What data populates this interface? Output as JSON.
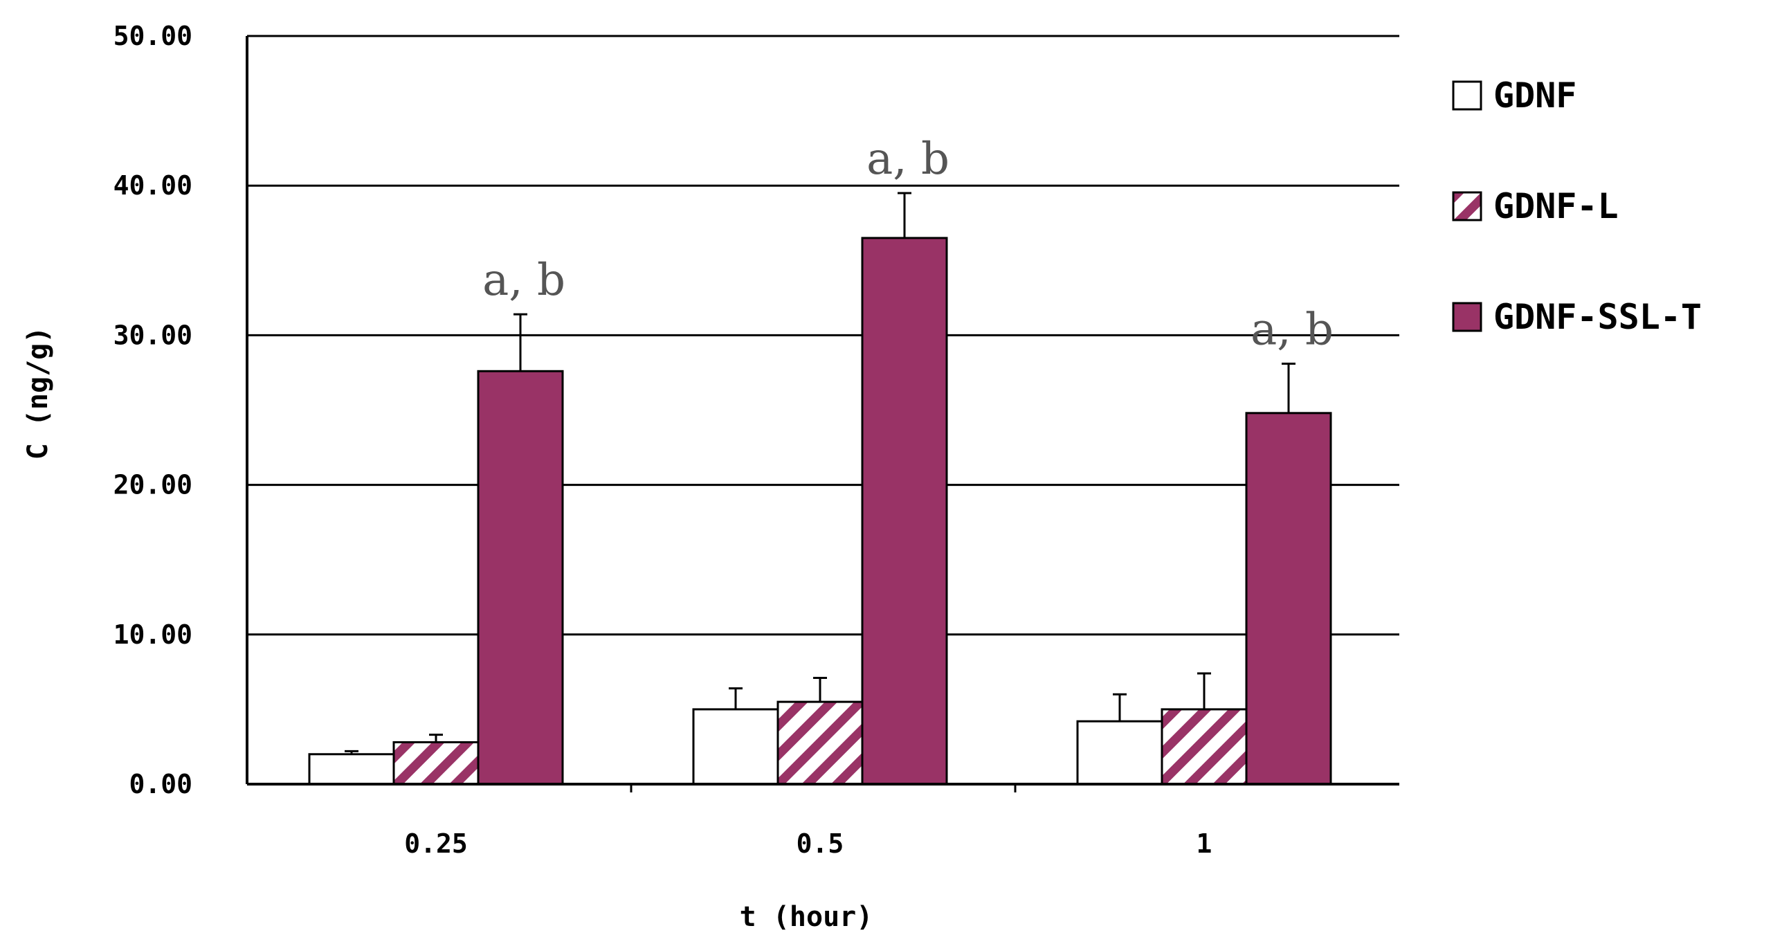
{
  "chart_data": {
    "type": "bar",
    "xlabel": "t (hour)",
    "ylabel": "C (ng/g)",
    "ylim": [
      0,
      50
    ],
    "y_ticks": [
      "0.00",
      "10.00",
      "20.00",
      "30.00",
      "40.00",
      "50.00"
    ],
    "grid": true,
    "legend_position": "right",
    "categories": [
      "0.25",
      "0.5",
      "1"
    ],
    "series": [
      {
        "name": "GDNF",
        "values": [
          2.0,
          5.0,
          4.2
        ],
        "errors": [
          0.2,
          1.4,
          1.8
        ],
        "style": "white",
        "color": "#ffffff"
      },
      {
        "name": "GDNF-L",
        "values": [
          2.8,
          5.5,
          5.0
        ],
        "errors": [
          0.5,
          1.6,
          2.4
        ],
        "style": "hatched",
        "color": "#993366"
      },
      {
        "name": "GDNF-SSL-T",
        "values": [
          27.6,
          36.5,
          24.8
        ],
        "errors": [
          3.8,
          3.0,
          3.3
        ],
        "style": "solid",
        "color": "#993366"
      }
    ],
    "annotations": [
      {
        "category": "0.25",
        "text": "a, b"
      },
      {
        "category": "0.5",
        "text": "a, b"
      },
      {
        "category": "1",
        "text": "a, b"
      }
    ]
  }
}
